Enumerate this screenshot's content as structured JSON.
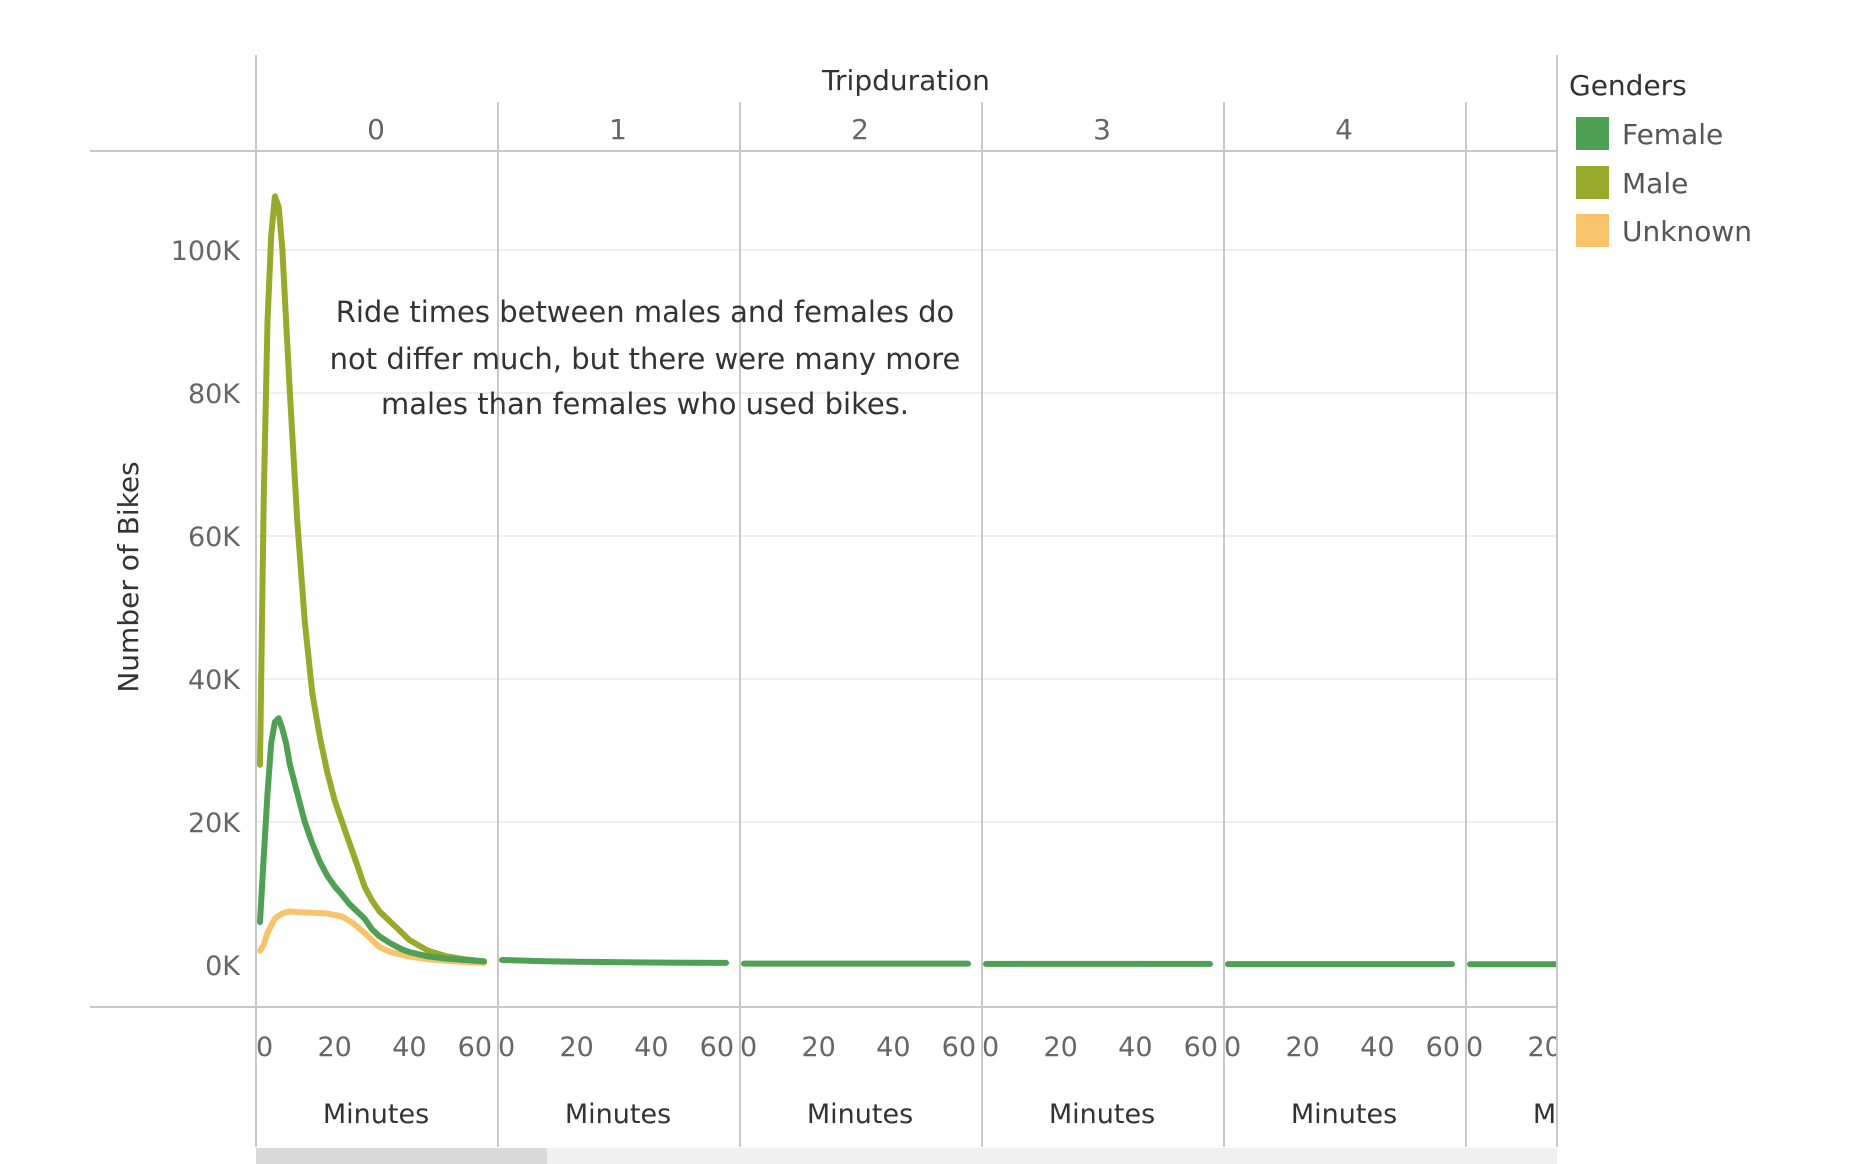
{
  "legend": {
    "title": "Genders",
    "items": [
      {
        "label": "Female",
        "color": "#4f9f55"
      },
      {
        "label": "Male",
        "color": "#97aa2c"
      },
      {
        "label": "Unknown",
        "color": "#f7c46c"
      }
    ]
  },
  "annotation": {
    "lines": [
      "Ride times between males and females do",
      "not differ much, but there were many more",
      "males than females who used bikes."
    ]
  },
  "chart_data": {
    "type": "line",
    "column_header": "Tripduration",
    "ylabel": "Number of Bikes",
    "xlabel": "Minutes",
    "ylim": [
      0,
      110000
    ],
    "y_ticks": [
      "0K",
      "20K",
      "40K",
      "60K",
      "80K",
      "100K"
    ],
    "y_tick_values": [
      0,
      20000,
      40000,
      60000,
      80000,
      100000
    ],
    "x_ticks": [
      "0",
      "20",
      "40",
      "60"
    ],
    "x_tick_values": [
      0,
      20,
      40,
      60
    ],
    "xlim": [
      0,
      60
    ],
    "grid": true,
    "legend_position": "right",
    "panes": [
      {
        "label": "0",
        "series": [
          {
            "name": "Female",
            "x": [
              0,
              1,
              2,
              3,
              4,
              5,
              6,
              7,
              8,
              10,
              12,
              14,
              16,
              18,
              20,
              22,
              24,
              26,
              28,
              30,
              32,
              35,
              38,
              40,
              45,
              50,
              55,
              60
            ],
            "y": [
              6000,
              15000,
              24000,
              31000,
              34000,
              34500,
              33000,
              31000,
              28000,
              24000,
              20000,
              17000,
              14500,
              12500,
              11000,
              9800,
              8500,
              7500,
              6500,
              5000,
              4000,
              3000,
              2200,
              1800,
              1200,
              900,
              700,
              500
            ]
          },
          {
            "name": "Male",
            "x": [
              0,
              1,
              2,
              3,
              4,
              5,
              6,
              7,
              8,
              10,
              12,
              14,
              16,
              18,
              20,
              22,
              24,
              26,
              28,
              30,
              32,
              35,
              38,
              40,
              45,
              50,
              55,
              60
            ],
            "y": [
              28000,
              65000,
              90000,
              102000,
              107500,
              106000,
              100000,
              90000,
              80000,
              62000,
              48000,
              38000,
              32000,
              27000,
              23000,
              20000,
              17000,
              14000,
              11000,
              9000,
              7500,
              6000,
              4500,
              3500,
              2000,
              1200,
              800,
              500
            ]
          },
          {
            "name": "Unknown",
            "x": [
              0,
              1,
              2,
              4,
              6,
              8,
              10,
              14,
              18,
              22,
              25,
              28,
              30,
              32,
              35,
              40,
              45,
              50,
              55,
              60
            ],
            "y": [
              2000,
              2800,
              4500,
              6500,
              7200,
              7500,
              7400,
              7300,
              7200,
              6800,
              5800,
              4500,
              3500,
              2500,
              1800,
              1200,
              800,
              600,
              400,
              300
            ]
          }
        ]
      },
      {
        "label": "1",
        "series": [
          {
            "name": "Female",
            "x": [
              0,
              10,
              20,
              30,
              40,
              50,
              60
            ],
            "y": [
              700,
              550,
              450,
              400,
              350,
              320,
              300
            ]
          }
        ]
      },
      {
        "label": "2",
        "series": [
          {
            "name": "Female",
            "x": [
              0,
              60
            ],
            "y": [
              200,
              200
            ]
          }
        ]
      },
      {
        "label": "3",
        "series": [
          {
            "name": "Female",
            "x": [
              0,
              60
            ],
            "y": [
              150,
              150
            ]
          }
        ]
      },
      {
        "label": "4",
        "series": [
          {
            "name": "Female",
            "x": [
              0,
              60
            ],
            "y": [
              120,
              120
            ]
          }
        ]
      },
      {
        "label": "",
        "series": [
          {
            "name": "Female",
            "x": [
              0,
              60
            ],
            "y": [
              100,
              100
            ]
          }
        ]
      }
    ]
  }
}
